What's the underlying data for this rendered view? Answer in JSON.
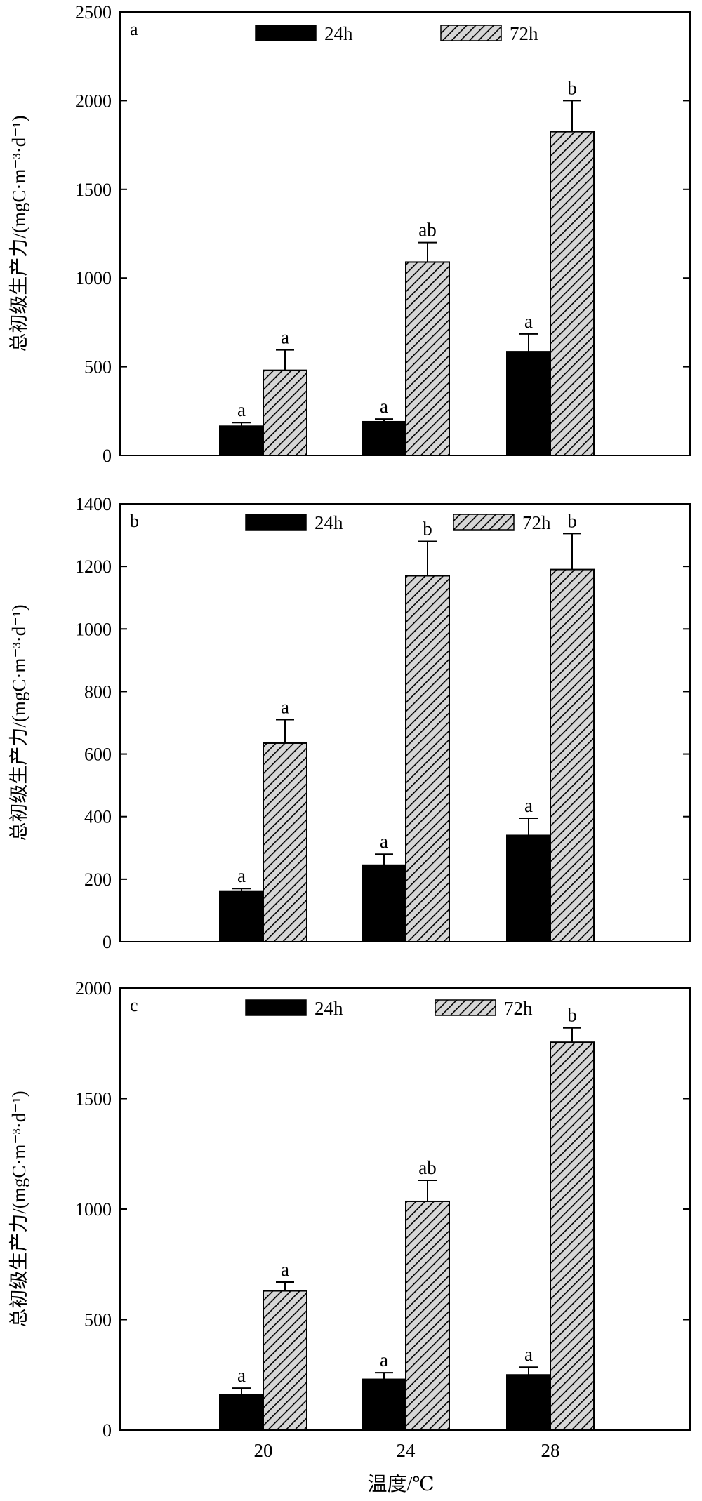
{
  "chart_data": [
    {
      "type": "bar",
      "panel_label": "a",
      "ylabel": "总初级生产力/(mgC·m⁻³·d⁻¹)",
      "xlabel": "",
      "categories": [
        "20",
        "24",
        "28"
      ],
      "ylim": [
        0,
        2500
      ],
      "yticks": [
        0,
        500,
        1000,
        1500,
        2000,
        2500
      ],
      "show_x_tick_labels": false,
      "legend_position": "top",
      "series": [
        {
          "name": "24h",
          "pattern": "solid",
          "color": "#000000",
          "values": [
            165,
            190,
            585
          ],
          "errors": [
            20,
            15,
            100
          ],
          "letters": [
            "a",
            "a",
            "a"
          ]
        },
        {
          "name": "72h",
          "pattern": "hatched",
          "color": "#d0d0d0",
          "values": [
            480,
            1090,
            1825
          ],
          "errors": [
            115,
            110,
            175
          ],
          "letters": [
            "a",
            "ab",
            "b"
          ]
        }
      ]
    },
    {
      "type": "bar",
      "panel_label": "b",
      "ylabel": "总初级生产力/(mgC·m⁻³·d⁻¹)",
      "xlabel": "",
      "categories": [
        "20",
        "24",
        "28"
      ],
      "ylim": [
        0,
        1400
      ],
      "yticks": [
        0,
        200,
        400,
        600,
        800,
        1000,
        1200,
        1400
      ],
      "show_x_tick_labels": false,
      "legend_position": "top",
      "series": [
        {
          "name": "24h",
          "pattern": "solid",
          "color": "#000000",
          "values": [
            160,
            245,
            340
          ],
          "errors": [
            10,
            35,
            55
          ],
          "letters": [
            "a",
            "a",
            "a"
          ]
        },
        {
          "name": "72h",
          "pattern": "hatched",
          "color": "#d0d0d0",
          "values": [
            635,
            1170,
            1190
          ],
          "errors": [
            75,
            110,
            115
          ],
          "letters": [
            "a",
            "b",
            "b"
          ]
        }
      ]
    },
    {
      "type": "bar",
      "panel_label": "c",
      "ylabel": "总初级生产力/(mgC·m⁻³·d⁻¹)",
      "xlabel": "温度/℃",
      "categories": [
        "20",
        "24",
        "28"
      ],
      "ylim": [
        0,
        2000
      ],
      "yticks": [
        0,
        500,
        1000,
        1500,
        2000
      ],
      "show_x_tick_labels": true,
      "legend_position": "top",
      "series": [
        {
          "name": "24h",
          "pattern": "solid",
          "color": "#000000",
          "values": [
            160,
            230,
            250
          ],
          "errors": [
            30,
            30,
            35
          ],
          "letters": [
            "a",
            "a",
            "a"
          ]
        },
        {
          "name": "72h",
          "pattern": "hatched",
          "color": "#d0d0d0",
          "values": [
            630,
            1035,
            1755
          ],
          "errors": [
            40,
            95,
            65
          ],
          "letters": [
            "a",
            "ab",
            "b"
          ]
        }
      ]
    }
  ]
}
